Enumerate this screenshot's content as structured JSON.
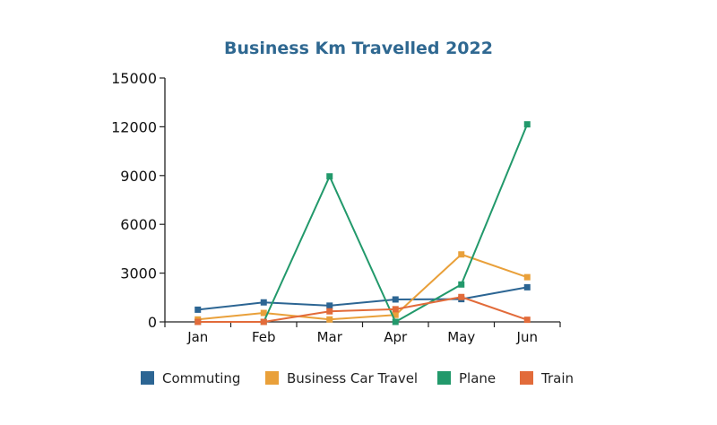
{
  "colors": {
    "title": "#2f6891",
    "axis": "#222222"
  },
  "chart_data": {
    "type": "line",
    "title": "Business Km Travelled  2022",
    "xlabel": "",
    "ylabel": "",
    "categories": [
      "Jan",
      "Feb",
      "Mar",
      "Apr",
      "May",
      "Jun"
    ],
    "ylim": [
      0,
      15000
    ],
    "yticks": [
      "0",
      "3000",
      "6000",
      "9000",
      "12000",
      "15000"
    ],
    "grid": false,
    "legend_position": "bottom",
    "marker": "square",
    "series": [
      {
        "name": "Commuting",
        "color": "#2c6593",
        "values": [
          750,
          1200,
          1000,
          1380,
          1400,
          2130
        ]
      },
      {
        "name": "Business Car Travel",
        "color": "#e9a03a",
        "values": [
          150,
          550,
          150,
          430,
          4150,
          2750
        ]
      },
      {
        "name": "Plane",
        "color": "#22996b",
        "values": [
          0,
          0,
          8950,
          0,
          2300,
          12150
        ]
      },
      {
        "name": "Train",
        "color": "#e26b3a",
        "values": [
          0,
          0,
          650,
          780,
          1530,
          130
        ]
      }
    ]
  }
}
